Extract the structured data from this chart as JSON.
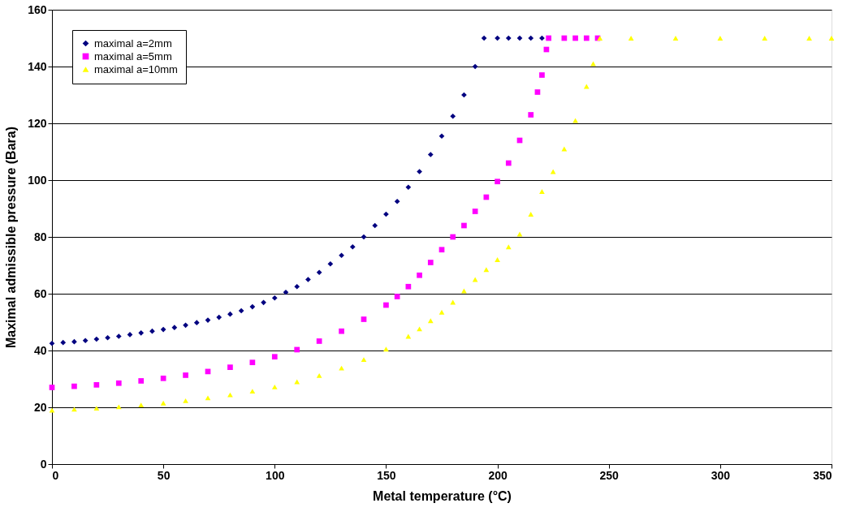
{
  "chart_data": {
    "type": "scatter",
    "xlabel": "Metal temperature (°C)",
    "ylabel": "Maximal admissible pressure (Bara)",
    "xlim": [
      0,
      350
    ],
    "xticks": [
      0,
      50,
      100,
      150,
      200,
      250,
      300,
      350
    ],
    "ylim": [
      0,
      160
    ],
    "yticks": [
      0,
      20,
      40,
      60,
      80,
      100,
      120,
      140,
      160
    ],
    "grid": "y",
    "legend": "top left",
    "series": [
      {
        "name": "maximal a=2mm",
        "color": "#000080",
        "marker": "diamond",
        "x": [
          0,
          5,
          10,
          15,
          20,
          25,
          30,
          35,
          40,
          45,
          50,
          55,
          60,
          65,
          70,
          75,
          80,
          85,
          90,
          95,
          100,
          105,
          110,
          115,
          120,
          125,
          130,
          135,
          140,
          145,
          150,
          155,
          160,
          165,
          170,
          175,
          180,
          185,
          190,
          194,
          200,
          205,
          210,
          215,
          220
        ],
        "values": [
          42.5,
          42.8,
          43.1,
          43.5,
          44,
          44.5,
          45,
          45.6,
          46.2,
          46.8,
          47.4,
          48.1,
          48.9,
          49.8,
          50.7,
          51.7,
          52.8,
          54,
          55.4,
          56.9,
          58.5,
          60.5,
          62.5,
          65,
          67.5,
          70.5,
          73.5,
          76.5,
          80,
          84,
          88,
          92.5,
          97.5,
          103,
          109,
          115.5,
          122.5,
          130,
          140,
          150,
          150,
          150,
          150,
          150,
          150
        ]
      },
      {
        "name": "maximal a=5mm",
        "color": "#ff00ff",
        "marker": "square",
        "x": [
          0,
          10,
          20,
          30,
          40,
          50,
          60,
          70,
          80,
          90,
          100,
          110,
          120,
          130,
          140,
          150,
          155,
          160,
          165,
          170,
          175,
          180,
          185,
          190,
          195,
          200,
          205,
          210,
          215,
          218,
          220,
          222,
          223,
          230,
          235,
          240,
          245
        ],
        "values": [
          27,
          27.4,
          27.9,
          28.5,
          29.3,
          30.2,
          31.3,
          32.6,
          34.1,
          35.8,
          37.8,
          40.3,
          43.3,
          46.8,
          51,
          56,
          59,
          62.5,
          66.5,
          71,
          75.5,
          80,
          84,
          89,
          94,
          99.5,
          106,
          114,
          123,
          131,
          137,
          146,
          150,
          150,
          150,
          150,
          150
        ]
      },
      {
        "name": "maximal a=10mm",
        "color": "#ffff00",
        "marker": "triangle",
        "x": [
          0,
          10,
          20,
          30,
          40,
          50,
          60,
          70,
          80,
          90,
          100,
          110,
          120,
          130,
          140,
          150,
          160,
          165,
          170,
          175,
          180,
          185,
          190,
          195,
          200,
          205,
          210,
          215,
          220,
          225,
          230,
          235,
          240,
          243,
          246,
          260,
          280,
          300,
          320,
          340,
          350
        ],
        "values": [
          19,
          19.3,
          19.7,
          20.2,
          20.8,
          21.5,
          22.3,
          23.3,
          24.4,
          25.7,
          27.2,
          29,
          31.2,
          33.8,
          36.8,
          40.5,
          45,
          47.6,
          50.5,
          53.5,
          57,
          61,
          65,
          68.5,
          72,
          76.5,
          81,
          88,
          96,
          103,
          111,
          121,
          133,
          141,
          150,
          150,
          150,
          150,
          150,
          150,
          150
        ]
      }
    ]
  }
}
